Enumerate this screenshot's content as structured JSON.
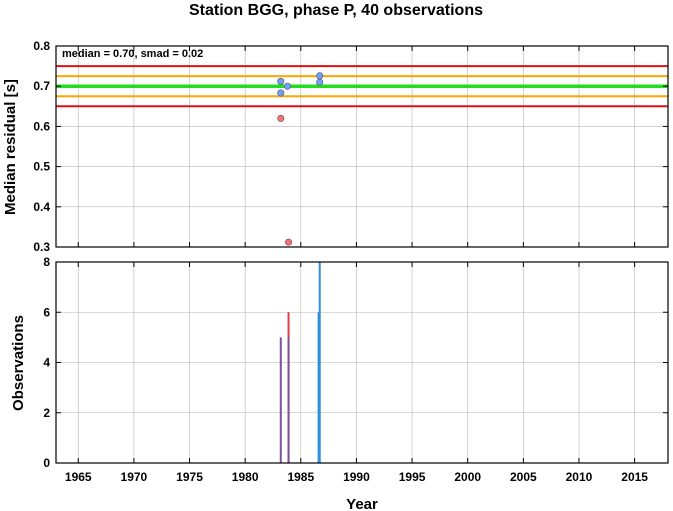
{
  "title": "Station BGG, phase P, 40 observations",
  "stats_text": "median = 0.70, smad = 0.02",
  "colors": {
    "median_line": "#22dd22",
    "inner_band": "#ffa500",
    "outer_band": "#dd1111",
    "point_in": "#6f9fff",
    "point_out": "#ff6f6f",
    "bar_in": "#2f8fe0",
    "bar_out": "#e04040",
    "bar_mixed": "#8050a0"
  },
  "chart_data": [
    {
      "type": "scatter",
      "name": "residuals",
      "ylabel": "Median residual [s]",
      "xlim": [
        1963,
        2018
      ],
      "ylim": [
        0.3,
        0.8
      ],
      "x_ticks": [
        1965,
        1970,
        1975,
        1980,
        1985,
        1990,
        1995,
        2000,
        2005,
        2010,
        2015
      ],
      "y_ticks": [
        0.3,
        0.4,
        0.5,
        0.6,
        0.7,
        0.8
      ],
      "y_tick_labels": [
        "0.3",
        "0.4",
        "0.5",
        "0.6",
        "0.7",
        "0.8"
      ],
      "grid": true,
      "reference_lines": [
        {
          "y": 0.7,
          "kind": "median"
        },
        {
          "y": 0.725,
          "kind": "inner"
        },
        {
          "y": 0.675,
          "kind": "inner"
        },
        {
          "y": 0.75,
          "kind": "outer"
        },
        {
          "y": 0.65,
          "kind": "outer"
        }
      ],
      "points": [
        {
          "x": 1983.2,
          "y": 0.712,
          "status": "in"
        },
        {
          "x": 1983.2,
          "y": 0.683,
          "status": "in"
        },
        {
          "x": 1983.8,
          "y": 0.7,
          "status": "in"
        },
        {
          "x": 1983.2,
          "y": 0.62,
          "status": "out"
        },
        {
          "x": 1983.9,
          "y": 0.312,
          "status": "out"
        },
        {
          "x": 1986.7,
          "y": 0.726,
          "status": "in"
        },
        {
          "x": 1986.7,
          "y": 0.71,
          "status": "in"
        }
      ]
    },
    {
      "type": "bar",
      "name": "observations",
      "xlabel": "Year",
      "ylabel": "Observations",
      "xlim": [
        1963,
        2018
      ],
      "ylim": [
        0,
        8
      ],
      "x_ticks": [
        1965,
        1970,
        1975,
        1980,
        1985,
        1990,
        1995,
        2000,
        2005,
        2010,
        2015
      ],
      "y_ticks": [
        0,
        2,
        4,
        6,
        8
      ],
      "grid": true,
      "bars": [
        {
          "x": 1983.2,
          "value": 5,
          "status": "mixed"
        },
        {
          "x": 1983.9,
          "value": 6,
          "status": "out"
        },
        {
          "x": 1983.9,
          "value": 5,
          "status": "mixed"
        },
        {
          "x": 1986.7,
          "value": 8,
          "status": "in"
        },
        {
          "x": 1986.6,
          "value": 6,
          "status": "in"
        }
      ]
    }
  ]
}
